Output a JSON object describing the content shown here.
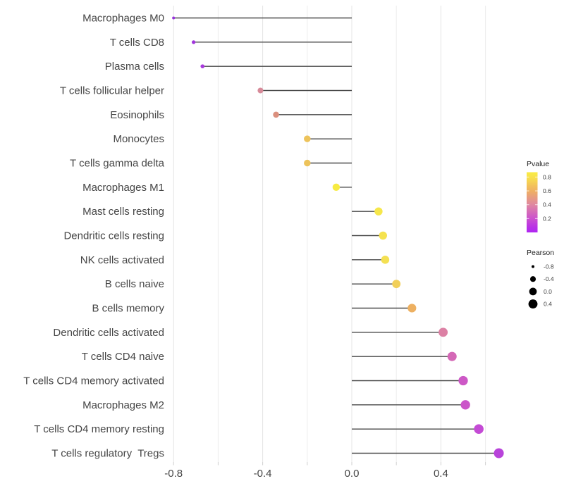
{
  "chart_data": {
    "type": "lollipop",
    "orientation": "horizontal",
    "title": "",
    "xlabel": "",
    "ylabel": "",
    "categories": [
      "Macrophages M0",
      "T cells CD8",
      "Plasma cells",
      "T cells follicular helper",
      "Eosinophils",
      "Monocytes",
      "T cells gamma delta",
      "Macrophages M1",
      "Mast cells resting",
      "Dendritic cells resting",
      "NK cells activated",
      "B cells naive",
      "B cells memory",
      "Dendritic cells activated",
      "T cells CD4 naive",
      "T cells CD4 memory activated",
      "Macrophages M2",
      "T cells CD4 memory resting",
      "T cells regulatory  Tregs"
    ],
    "series": [
      {
        "name": "Pearson",
        "values": [
          -0.8,
          -0.71,
          -0.67,
          -0.41,
          -0.34,
          -0.2,
          -0.2,
          -0.07,
          0.12,
          0.14,
          0.15,
          0.2,
          0.27,
          0.41,
          0.45,
          0.5,
          0.51,
          0.57,
          0.66
        ],
        "pvalue_estimated_from_color": [
          0.05,
          0.07,
          0.08,
          0.43,
          0.5,
          0.68,
          0.68,
          0.88,
          0.85,
          0.82,
          0.81,
          0.74,
          0.63,
          0.44,
          0.37,
          0.31,
          0.3,
          0.24,
          0.15
        ],
        "dot_colors": [
          "#9733DB",
          "#A135DC",
          "#A83ADC",
          "#D78A99",
          "#DB907E",
          "#EDC35B",
          "#EDC35B",
          "#F7EB42",
          "#F6E74B",
          "#F5E24F",
          "#F4E052",
          "#F1CF59",
          "#EDB061",
          "#DC80A4",
          "#D468B6",
          "#CD58C6",
          "#CB55C9",
          "#C44BD5",
          "#B843DA"
        ]
      }
    ],
    "x_axis": {
      "tick_values": [
        -0.8,
        -0.4,
        0.0,
        0.4
      ],
      "tick_labels": [
        "-0.8",
        "-0.4",
        "0.0",
        "0.4"
      ],
      "minor_grid_values": [
        -0.8,
        -0.6,
        -0.4,
        -0.2,
        0.0,
        0.2,
        0.4,
        0.6
      ],
      "range": [
        -0.88,
        0.73
      ],
      "grid": "vertical-only"
    },
    "legend_pvalue": {
      "title": "Pvalue",
      "tick_labels": [
        "0.8",
        "0.6",
        "0.4",
        "0.2"
      ],
      "tick_values": [
        0.8,
        0.6,
        0.4,
        0.2
      ],
      "bar_range": [
        0.0,
        0.87
      ],
      "gradient_top_to_bottom": [
        "#F9EC45",
        "#F8E04C",
        "#F2BC5D",
        "#EFB062",
        "#DF87A1",
        "#CB51CE",
        "#BA34E4",
        "#AF26F3"
      ]
    },
    "legend_pearson": {
      "title": "Pearson",
      "entries": [
        {
          "label": "-0.8",
          "value": -0.8
        },
        {
          "label": "-0.4",
          "value": -0.4
        },
        {
          "label": "0.0",
          "value": 0.0
        },
        {
          "label": "0.4",
          "value": 0.4
        }
      ],
      "dot_color": "#000000"
    },
    "style_colors": {
      "background": "#ffffff",
      "gridline": "#ececec",
      "tick_mark": "#cfcfcf",
      "stem": "#4a4a4a",
      "axis_text": "#454545",
      "legend_text": "#3d3d3d",
      "legend_title": "#1f1f1f"
    }
  }
}
